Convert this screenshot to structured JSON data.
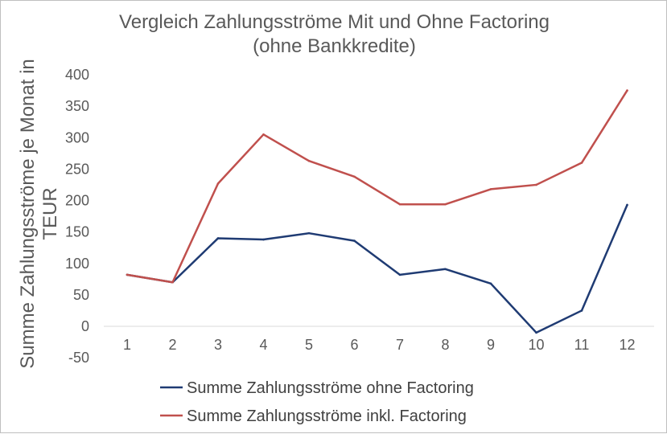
{
  "chart_data": {
    "type": "line",
    "title": "Vergleich Zahlungsströme Mit und Ohne Factoring",
    "subtitle": "(ohne Bankkredite)",
    "ylabel_lines": [
      "Summe Zahlungsströme je Monat in",
      "TEUR"
    ],
    "xlabel": "",
    "categories": [
      "1",
      "2",
      "3",
      "4",
      "5",
      "6",
      "7",
      "8",
      "9",
      "10",
      "11",
      "12"
    ],
    "ylim": [
      -50,
      400
    ],
    "yticks": [
      -50,
      0,
      50,
      100,
      150,
      200,
      250,
      300,
      350,
      400
    ],
    "grid": false,
    "legend_position": "bottom",
    "series": [
      {
        "name": "Summe Zahlungsströme ohne Factoring",
        "color": "#1f3b73",
        "values": [
          82,
          70,
          140,
          138,
          148,
          136,
          82,
          91,
          68,
          -10,
          25,
          193
        ]
      },
      {
        "name": "Summe Zahlungsströme inkl. Factoring",
        "color": "#c0504d",
        "values": [
          82,
          70,
          227,
          305,
          263,
          238,
          194,
          194,
          218,
          225,
          260,
          375
        ]
      }
    ]
  }
}
